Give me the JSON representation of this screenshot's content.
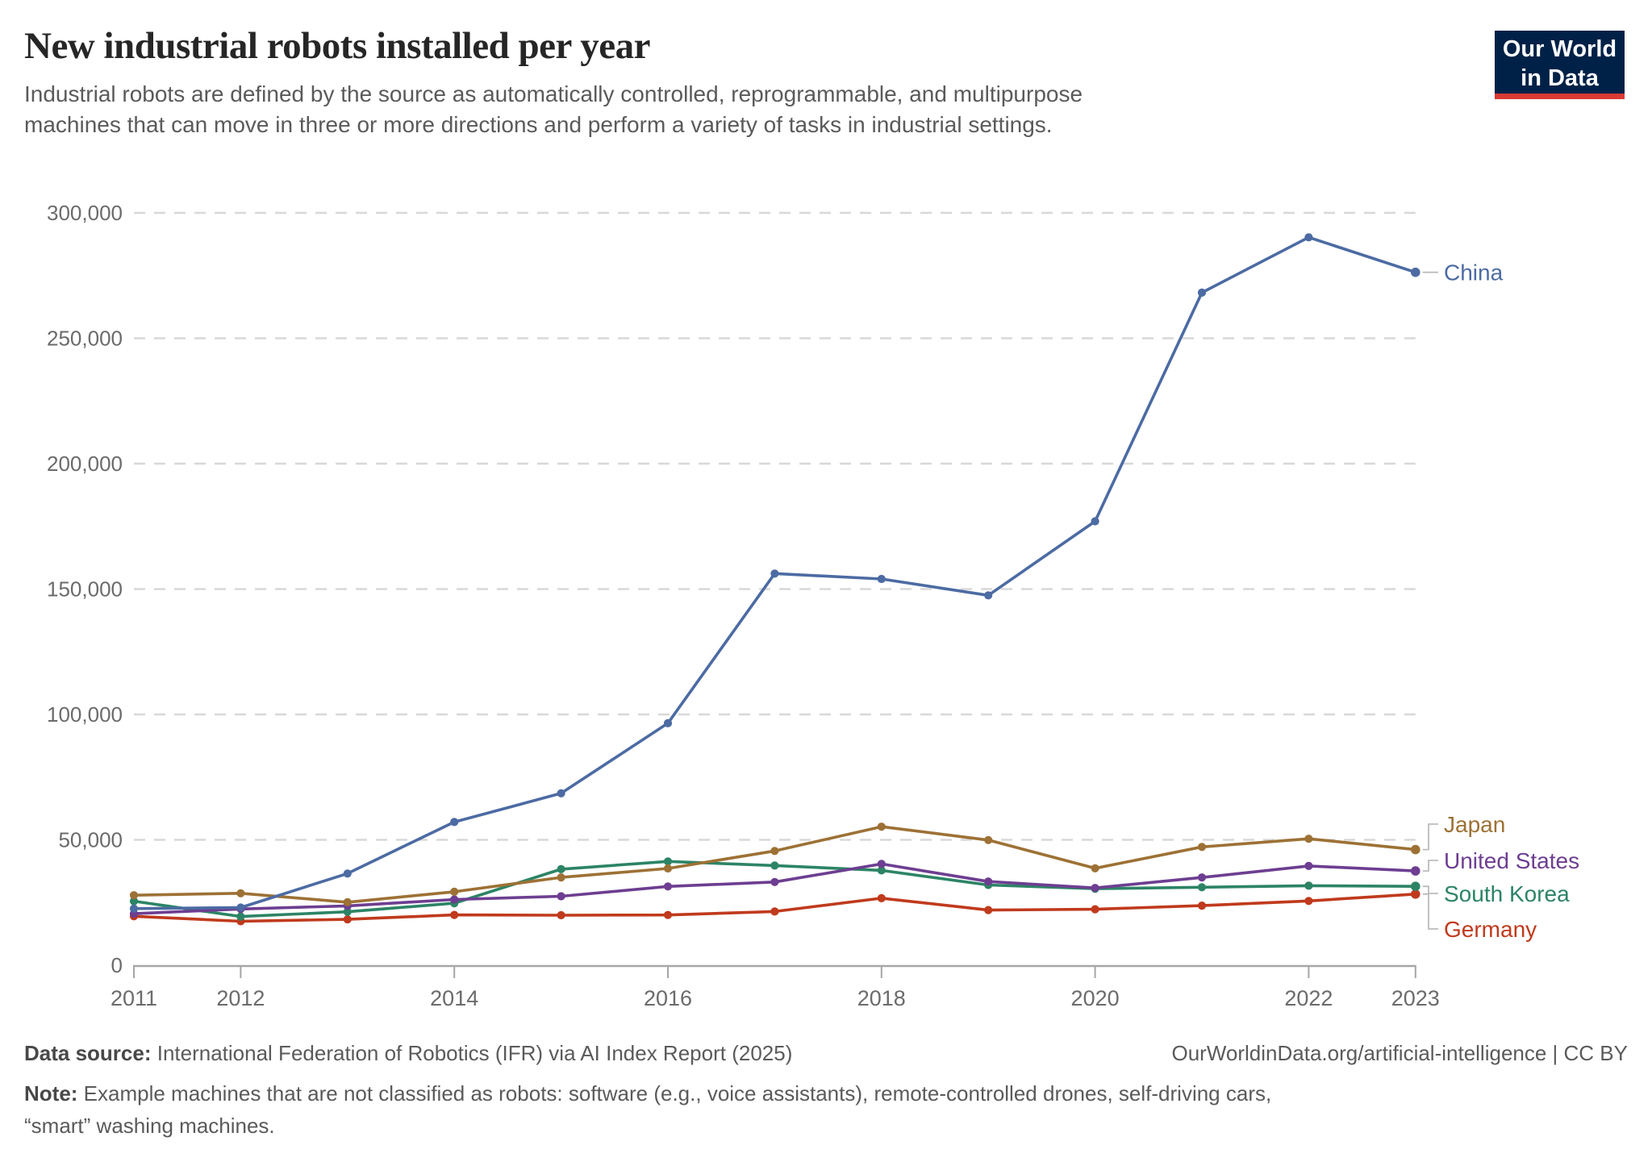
{
  "chart_data": {
    "type": "line",
    "title": "New industrial robots installed per year",
    "subtitle": "Industrial robots are defined by the source as automatically controlled, reprogrammable, and multipurpose machines that can move in three or more directions and perform a variety of tasks in industrial settings.",
    "x": [
      2011,
      2012,
      2013,
      2014,
      2015,
      2016,
      2017,
      2018,
      2019,
      2020,
      2021,
      2022,
      2023
    ],
    "x_tick_labels": [
      "2011",
      "2012",
      "2014",
      "2016",
      "2018",
      "2020",
      "2022",
      "2023"
    ],
    "x_tick_indices": [
      0,
      1,
      3,
      5,
      7,
      9,
      11,
      12
    ],
    "y_ticks": [
      0,
      50000,
      100000,
      150000,
      200000,
      250000,
      300000
    ],
    "ylim": [
      0,
      300000
    ],
    "grid": "horizontal-dashed",
    "legend_position": "right-end-labels",
    "series": [
      {
        "name": "China",
        "color": "#4c6ba3",
        "values": [
          22577,
          22987,
          36560,
          57096,
          68556,
          96500,
          156176,
          154032,
          147500,
          177000,
          268195,
          290258,
          276288
        ]
      },
      {
        "name": "Japan",
        "color": "#9d7135",
        "values": [
          27894,
          28680,
          25110,
          29297,
          35023,
          38586,
          45566,
          55240,
          49908,
          38653,
          47182,
          50413,
          46106
        ]
      },
      {
        "name": "United States",
        "color": "#6d3e91",
        "values": [
          20555,
          22414,
          23679,
          26202,
          27504,
          31404,
          33192,
          40373,
          33378,
          30800,
          34987,
          39576,
          37587
        ]
      },
      {
        "name": "South Korea",
        "color": "#2c8465",
        "values": [
          25536,
          19424,
          21307,
          24721,
          38285,
          41373,
          39732,
          37807,
          32000,
          30506,
          31083,
          31716,
          31444
        ]
      },
      {
        "name": "Germany",
        "color": "#c03a1d",
        "values": [
          19533,
          17528,
          18297,
          20051,
          19945,
          20039,
          21404,
          26723,
          22000,
          22302,
          23777,
          25636,
          28355
        ]
      }
    ]
  },
  "header": {
    "logo_line1": "Our World",
    "logo_line2": "in Data"
  },
  "footer": {
    "source_label": "Data source:",
    "source_text": "International Federation of Robotics (IFR) via AI Index Report (2025)",
    "link_text": "OurWorldinData.org/artificial-intelligence | CC BY",
    "note_label": "Note:",
    "note_text": "Example machines that are not classified as robots: software (e.g., voice assistants), remote-controlled drones, self-driving cars, “smart” washing machines."
  },
  "colors": {
    "gridline": "#d8d8d8",
    "axis": "#a6a6a6",
    "tick_label": "#6b6b6b",
    "connector": "#bcbcbc",
    "logo_bg": "#002147",
    "logo_underline": "#d93a34"
  }
}
